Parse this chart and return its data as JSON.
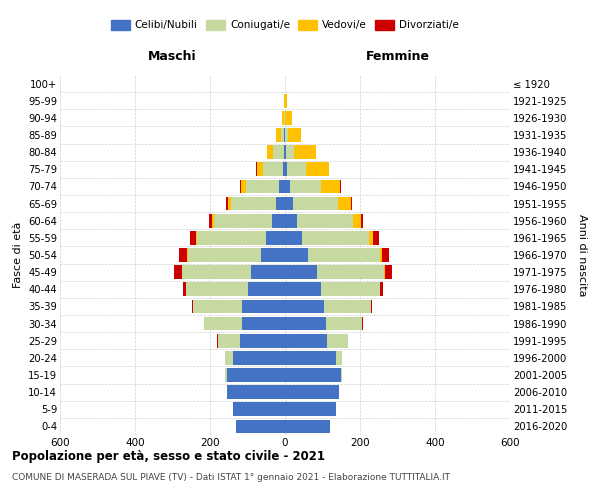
{
  "age_groups": [
    "0-4",
    "5-9",
    "10-14",
    "15-19",
    "20-24",
    "25-29",
    "30-34",
    "35-39",
    "40-44",
    "45-49",
    "50-54",
    "55-59",
    "60-64",
    "65-69",
    "70-74",
    "75-79",
    "80-84",
    "85-89",
    "90-94",
    "95-99",
    "100+"
  ],
  "birth_years": [
    "2016-2020",
    "2011-2015",
    "2006-2010",
    "2001-2005",
    "1996-2000",
    "1991-1995",
    "1986-1990",
    "1981-1985",
    "1976-1980",
    "1971-1975",
    "1966-1970",
    "1961-1965",
    "1956-1960",
    "1951-1955",
    "1946-1950",
    "1941-1945",
    "1936-1940",
    "1931-1935",
    "1926-1930",
    "1921-1925",
    "≤ 1920"
  ],
  "male_celibe": [
    130,
    140,
    155,
    155,
    140,
    120,
    115,
    115,
    100,
    90,
    65,
    50,
    35,
    25,
    15,
    5,
    3,
    2,
    1,
    0,
    0
  ],
  "male_coniugato": [
    0,
    0,
    0,
    5,
    20,
    60,
    100,
    130,
    165,
    185,
    195,
    185,
    155,
    120,
    90,
    55,
    28,
    10,
    2,
    0,
    0
  ],
  "male_vedovo": [
    0,
    0,
    0,
    0,
    0,
    0,
    0,
    0,
    0,
    0,
    2,
    3,
    4,
    8,
    12,
    16,
    18,
    12,
    6,
    2,
    0
  ],
  "male_divorziato": [
    0,
    0,
    0,
    0,
    0,
    1,
    2,
    4,
    8,
    20,
    22,
    16,
    8,
    4,
    2,
    1,
    0,
    0,
    0,
    0,
    0
  ],
  "female_celibe": [
    120,
    135,
    145,
    148,
    135,
    112,
    110,
    105,
    95,
    85,
    60,
    45,
    32,
    22,
    12,
    5,
    2,
    1,
    0,
    0,
    0
  ],
  "female_coniugata": [
    0,
    0,
    0,
    5,
    18,
    55,
    95,
    125,
    158,
    180,
    192,
    180,
    150,
    118,
    85,
    52,
    22,
    7,
    1,
    0,
    0
  ],
  "female_vedova": [
    0,
    0,
    0,
    0,
    0,
    0,
    0,
    0,
    1,
    2,
    6,
    10,
    20,
    35,
    50,
    60,
    58,
    35,
    18,
    6,
    1
  ],
  "female_divorziata": [
    0,
    0,
    0,
    0,
    0,
    0,
    2,
    3,
    6,
    18,
    20,
    16,
    7,
    4,
    2,
    1,
    0,
    0,
    0,
    0,
    0
  ],
  "color_celibe": "#4472c4",
  "color_coniugato": "#c5d9a0",
  "color_vedovo": "#ffc000",
  "color_divorziato": "#cc0000",
  "title": "Popolazione per età, sesso e stato civile - 2021",
  "subtitle": "COMUNE DI MASERADA SUL PIAVE (TV) - Dati ISTAT 1° gennaio 2021 - Elaborazione TUTTITALIA.IT",
  "xlabel_left": "Maschi",
  "xlabel_right": "Femmine",
  "ylabel": "Fasce di età",
  "ylabel_right": "Anni di nascita",
  "xlim": 600,
  "legend_labels": [
    "Celibi/Nubili",
    "Coniugati/e",
    "Vedovi/e",
    "Divorziati/e"
  ],
  "bg_color": "#ffffff",
  "grid_color": "#d0d0d0"
}
